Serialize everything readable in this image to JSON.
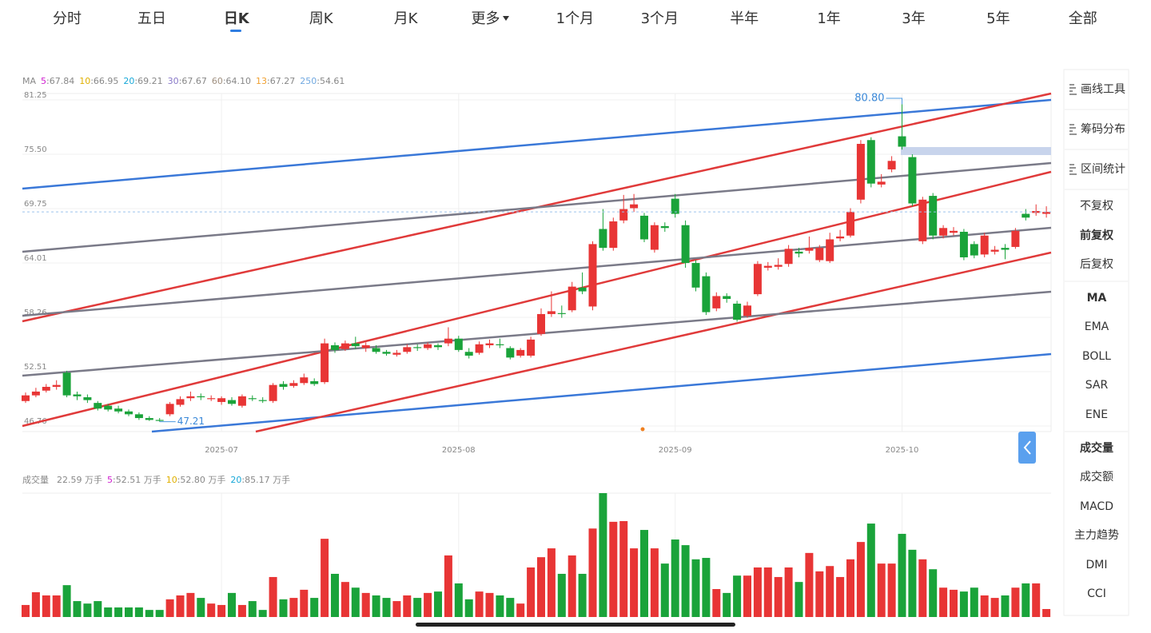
{
  "tabs": [
    {
      "label": "分时"
    },
    {
      "label": "五日"
    },
    {
      "label": "日K",
      "active": true
    },
    {
      "label": "周K"
    },
    {
      "label": "月K"
    },
    {
      "label": "更多"
    },
    {
      "label": "1个月"
    },
    {
      "label": "3个月"
    },
    {
      "label": "半年"
    },
    {
      "label": "1年"
    },
    {
      "label": "3年"
    },
    {
      "label": "5年"
    },
    {
      "label": "全部"
    }
  ],
  "chart_data": {
    "type": "candlestick",
    "ma_legend": {
      "title": "MA",
      "items": [
        {
          "period": "5",
          "text": ":67.84",
          "color": "#d020d0"
        },
        {
          "period": "10",
          "text": ":66.95",
          "color": "#e0b000"
        },
        {
          "period": "20",
          "text": ":69.21",
          "color": "#18a8d8"
        },
        {
          "period": "30",
          "text": ":67.67",
          "color": "#8878c8"
        },
        {
          "period": "60",
          "text": ":64.10",
          "color": "#a09080"
        },
        {
          "period": "13",
          "text": ":67.27",
          "color": "#f0a030"
        },
        {
          "period": "250",
          "text": ":54.61",
          "color": "#70a8e0"
        }
      ]
    },
    "up_color": "#e83535",
    "down_color": "#1aa33a",
    "ylim": [
      46.76,
      81.25
    ],
    "yticks": [
      81.25,
      {
        "value": 75.5,
        "label": "75.50"
      },
      69.75,
      64.01,
      58.26,
      52.51,
      46.76
    ],
    "xticks": [
      {
        "value": 19,
        "label": "2025-07"
      },
      {
        "value": 42,
        "label": "2025-08"
      },
      {
        "value": 63,
        "label": "2025-09"
      },
      {
        "value": 85,
        "label": "2025-10"
      }
    ],
    "high_label": {
      "index": 85,
      "value": 80.8,
      "label": "80.80"
    },
    "low_label": {
      "index": 13,
      "value": 47.21,
      "label": "47.21"
    },
    "candles": [
      [
        49.4,
        50.0,
        50.3,
        49.2
      ],
      [
        50.0,
        50.4,
        50.8,
        49.8
      ],
      [
        50.5,
        50.9,
        51.2,
        50.3
      ],
      [
        50.9,
        51.1,
        51.6,
        50.6
      ],
      [
        52.4,
        50.0,
        52.6,
        49.8
      ],
      [
        50.1,
        49.9,
        50.4,
        49.5
      ],
      [
        49.8,
        49.5,
        50.1,
        49.2
      ],
      [
        49.2,
        48.6,
        49.4,
        48.4
      ],
      [
        48.9,
        48.5,
        49.1,
        48.3
      ],
      [
        48.6,
        48.3,
        48.9,
        48.1
      ],
      [
        48.3,
        48.0,
        48.5,
        47.8
      ],
      [
        48.0,
        47.6,
        48.2,
        47.4
      ],
      [
        47.6,
        47.4,
        47.8,
        47.3
      ],
      [
        47.4,
        47.3,
        47.6,
        47.21
      ],
      [
        48.0,
        49.1,
        49.3,
        47.8
      ],
      [
        49.0,
        49.6,
        49.9,
        48.8
      ],
      [
        49.7,
        49.9,
        50.4,
        49.4
      ],
      [
        49.9,
        49.8,
        50.2,
        49.5
      ],
      [
        49.6,
        49.7,
        50.0,
        49.4
      ],
      [
        49.3,
        49.7,
        49.9,
        49.0
      ],
      [
        49.5,
        49.1,
        49.8,
        48.9
      ],
      [
        48.9,
        49.9,
        50.1,
        48.7
      ],
      [
        49.7,
        49.6,
        50.0,
        49.4
      ],
      [
        49.5,
        49.4,
        49.8,
        49.2
      ],
      [
        49.4,
        51.1,
        51.3,
        49.2
      ],
      [
        51.2,
        50.9,
        51.5,
        50.6
      ],
      [
        51.0,
        51.3,
        51.6,
        50.8
      ],
      [
        51.3,
        51.9,
        52.3,
        51.1
      ],
      [
        51.5,
        51.2,
        51.8,
        51.0
      ],
      [
        51.4,
        55.5,
        56.0,
        51.2
      ],
      [
        55.3,
        54.8,
        55.6,
        54.5
      ],
      [
        54.9,
        55.5,
        55.8,
        54.7
      ],
      [
        55.5,
        55.2,
        56.2,
        54.9
      ],
      [
        55.0,
        55.3,
        55.6,
        54.6
      ],
      [
        55.0,
        54.6,
        55.3,
        54.4
      ],
      [
        54.6,
        54.4,
        54.8,
        54.2
      ],
      [
        54.3,
        54.5,
        54.8,
        54.1
      ],
      [
        54.6,
        55.1,
        55.4,
        54.4
      ],
      [
        55.1,
        55.0,
        55.4,
        54.7
      ],
      [
        55.0,
        55.4,
        55.6,
        54.8
      ],
      [
        55.3,
        55.1,
        55.5,
        54.8
      ],
      [
        55.5,
        56.0,
        57.2,
        55.2
      ],
      [
        56.0,
        54.8,
        56.3,
        54.6
      ],
      [
        54.6,
        54.2,
        55.0,
        53.9
      ],
      [
        54.5,
        55.4,
        55.7,
        54.3
      ],
      [
        55.3,
        55.5,
        55.9,
        55.0
      ],
      [
        55.4,
        55.3,
        56.0,
        55.0
      ],
      [
        55.0,
        54.0,
        55.2,
        53.8
      ],
      [
        54.2,
        54.8,
        55.0,
        54.0
      ],
      [
        54.2,
        55.9,
        56.2,
        54.0
      ],
      [
        56.5,
        58.6,
        59.2,
        56.3
      ],
      [
        58.6,
        58.9,
        61.0,
        58.3
      ],
      [
        58.7,
        58.6,
        59.5,
        58.2
      ],
      [
        59.0,
        61.5,
        62.0,
        58.8
      ],
      [
        61.4,
        61.0,
        63.0,
        60.7
      ],
      [
        59.4,
        66.0,
        66.3,
        59.0
      ],
      [
        67.6,
        65.6,
        69.7,
        65.3
      ],
      [
        65.6,
        68.4,
        68.8,
        65.3
      ],
      [
        68.5,
        69.7,
        71.2,
        68.2
      ],
      [
        69.8,
        70.2,
        71.3,
        69.4
      ],
      [
        69.0,
        66.5,
        69.3,
        66.2
      ],
      [
        65.4,
        68.0,
        68.3,
        65.1
      ],
      [
        67.9,
        67.7,
        68.3,
        67.3
      ],
      [
        70.8,
        69.2,
        71.3,
        68.8
      ],
      [
        68.0,
        64.0,
        68.5,
        63.5
      ],
      [
        64.0,
        61.4,
        64.3,
        61.0
      ],
      [
        62.6,
        58.8,
        63.0,
        58.5
      ],
      [
        59.2,
        60.5,
        60.9,
        58.9
      ],
      [
        60.5,
        60.2,
        60.8,
        59.8
      ],
      [
        59.7,
        58.0,
        60.0,
        57.8
      ],
      [
        58.4,
        59.5,
        59.9,
        58.2
      ],
      [
        60.7,
        63.9,
        64.2,
        60.5
      ],
      [
        63.5,
        63.7,
        64.1,
        63.2
      ],
      [
        63.6,
        63.8,
        64.5,
        63.3
      ],
      [
        63.9,
        65.5,
        65.9,
        63.6
      ],
      [
        65.2,
        65.0,
        65.6,
        64.6
      ],
      [
        65.3,
        65.6,
        66.8,
        65.0
      ],
      [
        64.3,
        65.6,
        65.9,
        64.1
      ],
      [
        64.2,
        66.5,
        67.2,
        64.0
      ],
      [
        66.6,
        66.8,
        67.5,
        66.3
      ],
      [
        66.9,
        69.4,
        69.8,
        66.7
      ],
      [
        70.7,
        76.6,
        77.0,
        70.3
      ],
      [
        77.0,
        72.4,
        77.3,
        72.0
      ],
      [
        72.3,
        72.6,
        73.4,
        72.0
      ],
      [
        73.9,
        74.8,
        75.3,
        73.6
      ],
      [
        77.4,
        76.3,
        80.8,
        76.0
      ],
      [
        75.2,
        70.3,
        75.5,
        70.0
      ],
      [
        66.3,
        70.7,
        71.0,
        66.0
      ],
      [
        71.1,
        66.9,
        71.4,
        66.5
      ],
      [
        66.9,
        67.7,
        68.0,
        66.6
      ],
      [
        67.2,
        67.4,
        67.8,
        66.9
      ],
      [
        67.3,
        64.6,
        67.6,
        64.3
      ],
      [
        66.0,
        64.8,
        66.3,
        64.5
      ],
      [
        64.9,
        66.9,
        67.2,
        64.6
      ],
      [
        65.2,
        65.4,
        65.8,
        64.9
      ],
      [
        65.6,
        65.4,
        66.0,
        64.4
      ],
      [
        65.7,
        67.4,
        67.7,
        65.5
      ],
      [
        69.2,
        68.8,
        69.7,
        68.5
      ],
      [
        69.3,
        69.5,
        70.2,
        69.0
      ],
      [
        69.2,
        69.4,
        70.0,
        68.8
      ]
    ],
    "volume_legend": {
      "title": "成交量",
      "current": "22.59 万手",
      "items": [
        {
          "period": "5",
          "text": ":52.51 万手",
          "color": "#d020d0"
        },
        {
          "period": "10",
          "text": ":52.80 万手",
          "color": "#e0b000"
        },
        {
          "period": "20",
          "text": ":85.17 万手",
          "color": "#18a8d8"
        }
      ]
    },
    "vlim": [
      0,
      350
    ],
    "volume": [
      34,
      70,
      61,
      61,
      90,
      45,
      38,
      45,
      27,
      27,
      27,
      27,
      20,
      20,
      50,
      61,
      68,
      54,
      38,
      34,
      68,
      34,
      45,
      20,
      113,
      50,
      54,
      77,
      54,
      221,
      122,
      99,
      83,
      68,
      61,
      54,
      45,
      61,
      54,
      68,
      72,
      174,
      95,
      50,
      72,
      68,
      61,
      54,
      38,
      140,
      169,
      194,
      122,
      174,
      122,
      250,
      350,
      269,
      271,
      194,
      246,
      194,
      151,
      219,
      203,
      163,
      167,
      79,
      68,
      117,
      117,
      140,
      140,
      113,
      140,
      99,
      181,
      129,
      144,
      113,
      163,
      212,
      264,
      151,
      151,
      235,
      190,
      163,
      135,
      83,
      77,
      72,
      83,
      61,
      54,
      61,
      83,
      95,
      95,
      22.59
    ]
  },
  "side_menu": [
    {
      "label": "画线工具"
    },
    {
      "label": "筹码分布"
    },
    {
      "label": "区间统计"
    },
    {
      "label": "不复权"
    },
    {
      "label": "前复权",
      "active": true
    },
    {
      "label": "后复权"
    },
    {
      "label": "MA",
      "active": true
    },
    {
      "label": "EMA"
    },
    {
      "label": "BOLL"
    },
    {
      "label": "SAR"
    },
    {
      "label": "ENE"
    },
    {
      "label": "成交量",
      "active": true
    },
    {
      "label": "成交额"
    },
    {
      "label": "MACD"
    },
    {
      "label": "主力趋势"
    },
    {
      "label": "DMI"
    },
    {
      "label": "CCI"
    }
  ]
}
